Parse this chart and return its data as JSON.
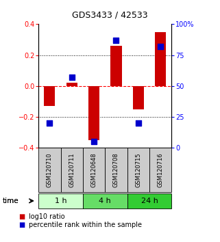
{
  "title": "GDS3433 / 42533",
  "samples": [
    "GSM120710",
    "GSM120711",
    "GSM120648",
    "GSM120708",
    "GSM120715",
    "GSM120716"
  ],
  "log10_ratio": [
    -0.13,
    0.02,
    -0.35,
    0.26,
    -0.15,
    0.35
  ],
  "percentile_rank": [
    20,
    57,
    5,
    87,
    20,
    82
  ],
  "ylim_left": [
    -0.4,
    0.4
  ],
  "ylim_right": [
    0,
    100
  ],
  "yticks_left": [
    -0.4,
    -0.2,
    0.0,
    0.2,
    0.4
  ],
  "yticks_right": [
    0,
    25,
    50,
    75,
    100
  ],
  "yticklabels_right": [
    "0",
    "25",
    "50",
    "75",
    "100%"
  ],
  "bar_color": "#cc0000",
  "scatter_color": "#0000cc",
  "bar_width": 0.5,
  "scatter_size": 28,
  "time_groups": [
    {
      "label": "1 h",
      "start": 0,
      "end": 2,
      "color": "#ccffcc"
    },
    {
      "label": "4 h",
      "start": 2,
      "end": 4,
      "color": "#66dd66"
    },
    {
      "label": "24 h",
      "start": 4,
      "end": 6,
      "color": "#33cc33"
    }
  ],
  "legend_bar_label": "log10 ratio",
  "legend_scatter_label": "percentile rank within the sample",
  "background_color": "#ffffff",
  "sample_box_color": "#cccccc",
  "sample_box_edgecolor": "#000000"
}
